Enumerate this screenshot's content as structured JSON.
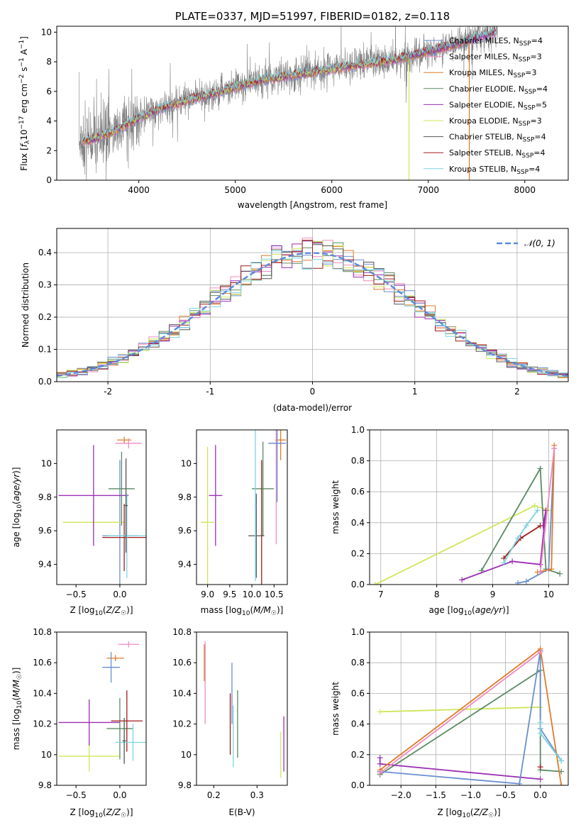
{
  "chart_data": [
    {
      "type": "line",
      "title": "PLATE=0337, MJD=51997, FIBERID=0182, z=0.118",
      "xlabel": "wavelength [Angstrom, rest frame]",
      "ylabel": "Flux [f_λ 10^-17 erg cm^-2 s^-1 A^-1]",
      "xlim": [
        3150,
        8450
      ],
      "ylim": [
        0,
        10.4
      ],
      "xticks": [
        4000,
        5000,
        6000,
        7000,
        8000
      ],
      "yticks": [
        0,
        2,
        4,
        6,
        8,
        10
      ],
      "legend_position": "top-right",
      "legend": [
        {
          "label": "Chabrier MILES, N_SSP=4",
          "color": "#6a8fd0"
        },
        {
          "label": "Salpeter MILES, N_SSP=3",
          "color": "#f08bc0"
        },
        {
          "label": "Kroupa MILES, N_SSP=3",
          "color": "#e07b2a"
        },
        {
          "label": "Chabrier ELODIE, N_SSP=4",
          "color": "#5b8a63"
        },
        {
          "label": "Salpeter ELODIE, N_SSP=5",
          "color": "#9a2fb5"
        },
        {
          "label": "Kroupa ELODIE, N_SSP=3",
          "color": "#cde75a"
        },
        {
          "label": "Chabrier STELIB, N_SSP=4",
          "color": "#555555"
        },
        {
          "label": "Salpeter STELIB, N_SSP=4",
          "color": "#a01c1c"
        },
        {
          "label": "Kroupa STELIB, N_SSP=4",
          "color": "#7dd3df"
        }
      ],
      "model_curve": {
        "x": [
          3400,
          3600,
          3800,
          4000,
          4200,
          4500,
          4800,
          5000,
          5300,
          5600,
          6000,
          6300,
          6700,
          7000,
          7300,
          7600,
          7800
        ],
        "y": [
          2.6,
          2.9,
          3.5,
          4.2,
          4.8,
          5.4,
          5.9,
          6.3,
          6.8,
          7.1,
          7.5,
          7.8,
          8.2,
          8.7,
          9.2,
          9.8,
          10.2
        ]
      }
    },
    {
      "type": "histogram",
      "xlabel": "(data-model)/error",
      "ylabel": "Normed distribution",
      "xlim": [
        -2.5,
        2.5
      ],
      "ylim": [
        0,
        0.475
      ],
      "xticks": [
        -2,
        -1,
        0,
        1,
        2
      ],
      "yticks": [
        0.0,
        0.1,
        0.2,
        0.3,
        0.4
      ],
      "legend_position": "top-right",
      "legend": [
        {
          "label": "𝒩(0, 1)",
          "color": "#5b8ad8"
        }
      ],
      "bin_width": 0.1
    },
    {
      "type": "scatter",
      "xlabel": "Z [log10(Z/Z☉)]",
      "ylabel": "age  [log10(age/yr)]",
      "xlim": [
        -0.72,
        0.3
      ],
      "ylim": [
        9.28,
        10.2
      ],
      "xticks": [
        -0.5,
        0.0
      ],
      "xtick_labels": [
        "−0.5",
        "0.0"
      ],
      "yticks": [
        9.4,
        9.6,
        9.8,
        10.0
      ],
      "points": [
        {
          "x": 0.05,
          "y": 10.14,
          "xerr": 0.08,
          "yerr": 0.02,
          "color": "#e07b2a"
        },
        {
          "x": 0.1,
          "y": 10.12,
          "xerr": 0.15,
          "yerr": 0.03,
          "color": "#f08bc0"
        },
        {
          "x": 0.0,
          "y": 9.57,
          "xerr": 0.2,
          "yerr": 0.45,
          "color": "#6a8fd0"
        },
        {
          "x": -0.3,
          "y": 9.65,
          "xerr": 0.35,
          "yerr": 0.1,
          "color": "#cde75a"
        },
        {
          "x": -0.3,
          "y": 9.81,
          "xerr": 0.4,
          "yerr": 0.3,
          "color": "#9a2fb5"
        },
        {
          "x": 0.02,
          "y": 9.85,
          "xerr": 0.15,
          "yerr": 0.22,
          "color": "#5b8a63"
        },
        {
          "x": 0.05,
          "y": 9.56,
          "xerr": 0.25,
          "yerr": 0.2,
          "color": "#a01c1c"
        },
        {
          "x": 0.08,
          "y": 9.57,
          "xerr": 0.22,
          "yerr": 0.25,
          "color": "#7dd3df"
        },
        {
          "x": 0.07,
          "y": 9.75,
          "xerr": 0.02,
          "yerr": 0.28,
          "color": "#555555"
        }
      ]
    },
    {
      "type": "scatter",
      "xlabel": "mass [log10(M/M☉)]",
      "ylabel": "",
      "xlim": [
        8.75,
        10.8
      ],
      "ylim": [
        9.28,
        10.2
      ],
      "xticks": [
        9.0,
        9.5,
        10.0,
        10.5
      ],
      "xtick_labels": [
        "9.0",
        "9.5",
        "10.0",
        "10.5"
      ],
      "yticks": [
        9.4,
        9.6,
        9.8,
        10.0
      ],
      "points": [
        {
          "x": 10.65,
          "y": 10.14,
          "xerr": 0.12,
          "yerr": 0.12,
          "color": "#e07b2a"
        },
        {
          "x": 10.55,
          "y": 10.12,
          "xerr": 0.15,
          "yerr": 0.6,
          "color": "#f08bc0"
        },
        {
          "x": 10.57,
          "y": 10.12,
          "xerr": 0.2,
          "yerr": 0.35,
          "color": "#6a8fd0"
        },
        {
          "x": 9.0,
          "y": 9.65,
          "xerr": 0.15,
          "yerr": 0.45,
          "color": "#cde75a"
        },
        {
          "x": 9.18,
          "y": 9.81,
          "xerr": 0.15,
          "yerr": 0.3,
          "color": "#9a2fb5"
        },
        {
          "x": 10.25,
          "y": 9.85,
          "xerr": 0.25,
          "yerr": 0.28,
          "color": "#5b8a63"
        },
        {
          "x": 10.22,
          "y": 9.57,
          "xerr": 0.03,
          "yerr": 0.45,
          "color": "#a01c1c"
        },
        {
          "x": 10.1,
          "y": 9.57,
          "xerr": 0.18,
          "yerr": 0.25,
          "color": "#555555"
        },
        {
          "x": 10.08,
          "y": 9.75,
          "xerr": 0.02,
          "yerr": 0.45,
          "color": "#7dd3df"
        }
      ]
    },
    {
      "type": "line",
      "xlabel": "age  [log10(age/yr)]",
      "ylabel": "mass weight",
      "xlim": [
        6.8,
        10.35
      ],
      "ylim": [
        0,
        1.0
      ],
      "xticks": [
        7,
        8,
        9,
        10
      ],
      "yticks": [
        0.0,
        0.2,
        0.4,
        0.6,
        0.8,
        1.0
      ],
      "series": [
        {
          "color": "#cde75a",
          "x": [
            6.9,
            9.75,
            10.0
          ],
          "y": [
            0.0,
            0.51,
            0.48
          ]
        },
        {
          "color": "#5b8a63",
          "x": [
            8.8,
            9.85,
            9.95,
            10.2
          ],
          "y": [
            0.09,
            0.75,
            0.1,
            0.07
          ]
        },
        {
          "color": "#9a2fb5",
          "x": [
            8.45,
            9.35,
            9.85,
            9.95,
            9.9
          ],
          "y": [
            0.03,
            0.15,
            0.13,
            0.48,
            0.38
          ]
        },
        {
          "color": "#a01c1c",
          "x": [
            9.2,
            9.5,
            9.85
          ],
          "y": [
            0.17,
            0.3,
            0.38
          ]
        },
        {
          "color": "#7dd3df",
          "x": [
            9.2,
            9.45,
            9.6,
            9.8
          ],
          "y": [
            0.14,
            0.3,
            0.38,
            0.48
          ]
        },
        {
          "color": "#6a8fd0",
          "x": [
            9.45,
            9.6,
            10.0,
            10.1
          ],
          "y": [
            0.01,
            0.02,
            0.1,
            0.88
          ]
        },
        {
          "color": "#e07b2a",
          "x": [
            9.8,
            10.05,
            10.1
          ],
          "y": [
            0.08,
            0.1,
            0.9
          ]
        },
        {
          "color": "#f08bc0",
          "x": [
            9.85,
            10.1
          ],
          "y": [
            0.08,
            0.88
          ]
        }
      ]
    },
    {
      "type": "scatter",
      "xlabel": "Z [log10(Z/Z☉)]",
      "ylabel": "mass [log10(M/M☉)]",
      "xlim": [
        -0.72,
        0.3
      ],
      "ylim": [
        9.8,
        10.8
      ],
      "xticks": [
        -0.5,
        0.0
      ],
      "xtick_labels": [
        "−0.5",
        "0.0"
      ],
      "yticks": [
        9.8,
        10.0,
        10.2,
        10.4,
        10.6,
        10.8
      ],
      "points": [
        {
          "x": 0.1,
          "y": 10.72,
          "xerr": 0.12,
          "yerr": 0.02,
          "color": "#f08bc0"
        },
        {
          "x": -0.05,
          "y": 10.63,
          "xerr": 0.1,
          "yerr": 0.02,
          "color": "#e07b2a"
        },
        {
          "x": -0.1,
          "y": 10.57,
          "xerr": 0.1,
          "yerr": 0.1,
          "color": "#6a8fd0"
        },
        {
          "x": -0.35,
          "y": 9.99,
          "xerr": 0.35,
          "yerr": 0.1,
          "color": "#cde75a"
        },
        {
          "x": -0.35,
          "y": 10.21,
          "xerr": 0.35,
          "yerr": 0.15,
          "color": "#9a2fb5"
        },
        {
          "x": 0.0,
          "y": 10.17,
          "xerr": 0.15,
          "yerr": 0.2,
          "color": "#5b8a63"
        },
        {
          "x": 0.08,
          "y": 10.22,
          "xerr": 0.18,
          "yerr": 0.2,
          "color": "#a01c1c"
        },
        {
          "x": 0.15,
          "y": 10.08,
          "xerr": 0.2,
          "yerr": 0.12,
          "color": "#7dd3df"
        },
        {
          "x": 0.05,
          "y": 10.09,
          "xerr": 0.02,
          "yerr": 0.15,
          "color": "#555555"
        }
      ]
    },
    {
      "type": "scatter",
      "xlabel": "E(B-V)",
      "ylabel": "",
      "xlim": [
        0.16,
        0.37
      ],
      "ylim": [
        9.8,
        10.8
      ],
      "xticks": [
        0.2,
        0.3
      ],
      "xtick_labels": [
        "0.2",
        "0.3"
      ],
      "yticks": [
        9.8,
        10.0,
        10.2,
        10.4,
        10.6,
        10.8
      ],
      "points": [
        {
          "x": 0.178,
          "y": 10.6,
          "yerr": 0.12,
          "color": "#e07b2a"
        },
        {
          "x": 0.18,
          "y": 10.47,
          "yerr": 0.27,
          "color": "#f08bc0"
        },
        {
          "x": 0.242,
          "y": 10.4,
          "yerr": 0.2,
          "color": "#6a8fd0"
        },
        {
          "x": 0.238,
          "y": 10.2,
          "yerr": 0.2,
          "color": "#a01c1c"
        },
        {
          "x": 0.245,
          "y": 10.12,
          "yerr": 0.2,
          "color": "#7dd3df"
        },
        {
          "x": 0.255,
          "y": 10.2,
          "yerr": 0.22,
          "color": "#5b8a63"
        },
        {
          "x": 0.355,
          "y": 10.0,
          "yerr": 0.15,
          "color": "#cde75a"
        },
        {
          "x": 0.362,
          "y": 10.07,
          "yerr": 0.18,
          "color": "#9a2fb5"
        }
      ]
    },
    {
      "type": "line",
      "xlabel": "Z [log10(Z/Z☉)]",
      "ylabel": "mass weight",
      "xlim": [
        -2.45,
        0.4
      ],
      "ylim": [
        0,
        1.0
      ],
      "xticks": [
        -2.0,
        -1.5,
        -1.0,
        -0.5,
        0.0
      ],
      "xtick_labels": [
        "−2.0",
        "−1.5",
        "−1.0",
        "−0.5",
        "0.0"
      ],
      "yticks": [
        0.0,
        0.2,
        0.4,
        0.6,
        0.8,
        1.0
      ],
      "series": [
        {
          "color": "#cde75a",
          "x": [
            -2.3,
            0.0
          ],
          "y": [
            0.48,
            0.51
          ]
        },
        {
          "color": "#5b8a63",
          "x": [
            -2.3,
            0.0,
            0.0,
            0.3
          ],
          "y": [
            0.07,
            0.75,
            0.1,
            0.09
          ]
        },
        {
          "color": "#9a2fb5",
          "x": [
            -2.3,
            -2.3,
            0.0
          ],
          "y": [
            0.18,
            0.14,
            0.04
          ]
        },
        {
          "color": "#6a8fd0",
          "x": [
            -2.3,
            -0.3,
            0.0,
            0.0,
            0.3
          ],
          "y": [
            0.09,
            0.01,
            0.88,
            0.37,
            0.16
          ]
        },
        {
          "color": "#e07b2a",
          "x": [
            -2.3,
            0.0,
            0.3
          ],
          "y": [
            0.1,
            0.89,
            0.0
          ]
        },
        {
          "color": "#f08bc0",
          "x": [
            -2.3,
            0.0
          ],
          "y": [
            0.08,
            0.87
          ]
        },
        {
          "color": "#7dd3df",
          "x": [
            0.0,
            0.0,
            0.3
          ],
          "y": [
            0.41,
            0.34,
            0.16
          ]
        },
        {
          "color": "#a01c1c",
          "x": [
            0.0
          ],
          "y": [
            0.12
          ]
        }
      ]
    }
  ]
}
